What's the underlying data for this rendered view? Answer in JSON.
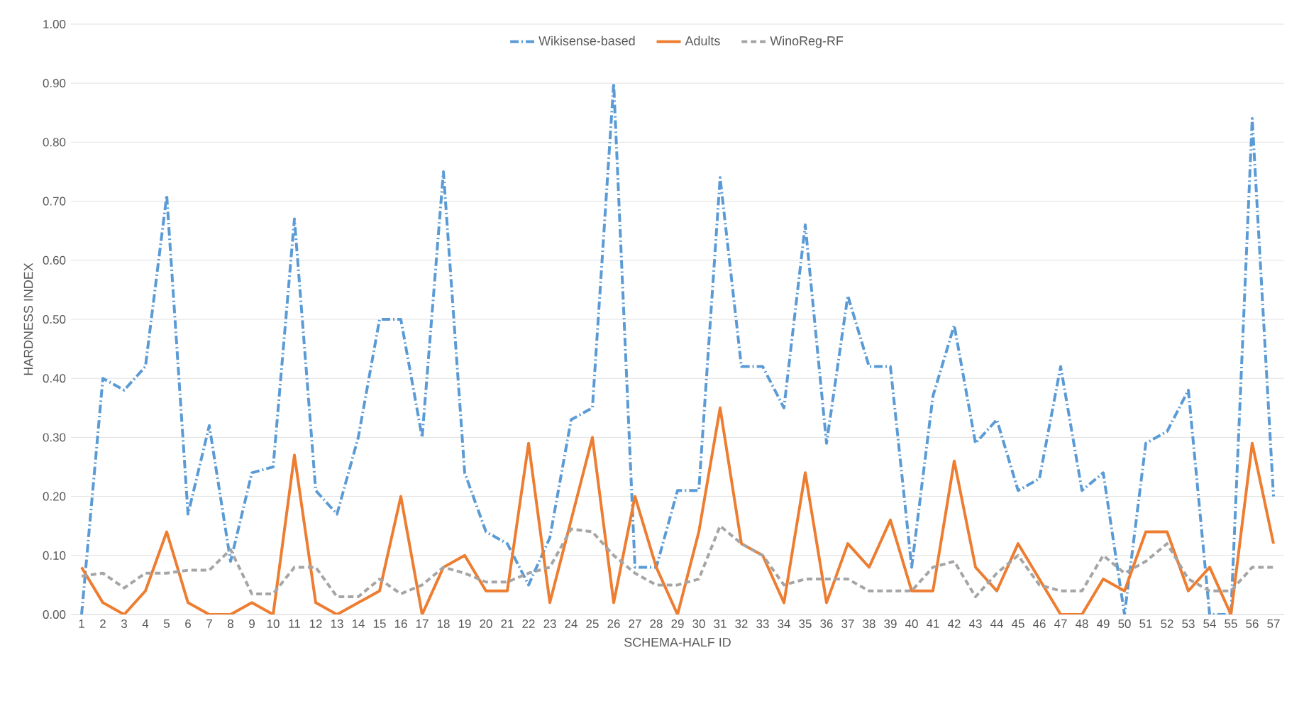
{
  "chart_data": {
    "type": "line",
    "xlabel": "SCHEMA-HALF ID",
    "ylabel": "HARDNESS INDEX",
    "categories": [
      "1",
      "2",
      "3",
      "4",
      "5",
      "6",
      "7",
      "8",
      "9",
      "10",
      "11",
      "12",
      "13",
      "14",
      "15",
      "16",
      "17",
      "18",
      "19",
      "20",
      "21",
      "22",
      "23",
      "24",
      "25",
      "26",
      "27",
      "28",
      "29",
      "30",
      "31",
      "32",
      "33",
      "34",
      "35",
      "36",
      "37",
      "38",
      "39",
      "40",
      "41",
      "42",
      "43",
      "44",
      "45",
      "46",
      "47",
      "48",
      "49",
      "50",
      "51",
      "52",
      "53",
      "54",
      "55",
      "56",
      "57"
    ],
    "series": [
      {
        "name": "Wikisense-based",
        "color": "#5b9bd5",
        "line_style": "dashdot",
        "values": [
          0.0,
          0.4,
          0.38,
          0.42,
          0.71,
          0.17,
          0.32,
          0.09,
          0.24,
          0.25,
          0.67,
          0.21,
          0.17,
          0.3,
          0.5,
          0.5,
          0.3,
          0.75,
          0.24,
          0.14,
          0.12,
          0.05,
          0.13,
          0.33,
          0.35,
          0.9,
          0.08,
          0.08,
          0.21,
          0.21,
          0.74,
          0.42,
          0.42,
          0.35,
          0.66,
          0.29,
          0.54,
          0.42,
          0.42,
          0.08,
          0.37,
          0.49,
          0.29,
          0.33,
          0.21,
          0.23,
          0.42,
          0.21,
          0.24,
          0.0,
          0.29,
          0.31,
          0.38,
          0.0,
          0.0,
          0.84,
          0.2
        ]
      },
      {
        "name": "Adults",
        "color": "#ed7d31",
        "line_style": "solid",
        "values": [
          0.08,
          0.02,
          0.0,
          0.04,
          0.14,
          0.02,
          0.0,
          0.0,
          0.02,
          0.0,
          0.27,
          0.02,
          0.0,
          0.02,
          0.04,
          0.2,
          0.0,
          0.08,
          0.1,
          0.04,
          0.04,
          0.29,
          0.02,
          0.16,
          0.3,
          0.02,
          0.2,
          0.08,
          0.0,
          0.14,
          0.35,
          0.12,
          0.1,
          0.02,
          0.24,
          0.02,
          0.12,
          0.08,
          0.16,
          0.04,
          0.04,
          0.26,
          0.08,
          0.04,
          0.12,
          0.06,
          0.0,
          0.0,
          0.06,
          0.04,
          0.14,
          0.14,
          0.04,
          0.08,
          0.0,
          0.29,
          0.12
        ]
      },
      {
        "name": "WinoReg-RF",
        "color": "#a5a5a5",
        "line_style": "dashed",
        "values": [
          0.065,
          0.07,
          0.045,
          0.07,
          0.07,
          0.075,
          0.075,
          0.11,
          0.035,
          0.035,
          0.08,
          0.08,
          0.03,
          0.03,
          0.06,
          0.035,
          0.05,
          0.08,
          0.07,
          0.055,
          0.055,
          0.07,
          0.08,
          0.145,
          0.14,
          0.1,
          0.07,
          0.05,
          0.05,
          0.06,
          0.15,
          0.12,
          0.1,
          0.05,
          0.06,
          0.06,
          0.06,
          0.04,
          0.04,
          0.04,
          0.08,
          0.09,
          0.03,
          0.07,
          0.1,
          0.05,
          0.04,
          0.04,
          0.1,
          0.07,
          0.09,
          0.12,
          0.06,
          0.04,
          0.04,
          0.08,
          0.08
        ]
      }
    ],
    "ylim": [
      0,
      1
    ],
    "yticks": [
      {
        "value": 0,
        "label": "0.00"
      },
      {
        "value": 0.1,
        "label": "0.10"
      },
      {
        "value": 0.2,
        "label": "0.20"
      },
      {
        "value": 0.3,
        "label": "0.30"
      },
      {
        "value": 0.4,
        "label": "0.40"
      },
      {
        "value": 0.5,
        "label": "0.50"
      },
      {
        "value": 0.6,
        "label": "0.60"
      },
      {
        "value": 0.7,
        "label": "0.70"
      },
      {
        "value": 0.8,
        "label": "0.80"
      },
      {
        "value": 0.9,
        "label": "0.90"
      },
      {
        "value": 1,
        "label": "1.00"
      }
    ],
    "grid": "y",
    "legend": "top"
  }
}
